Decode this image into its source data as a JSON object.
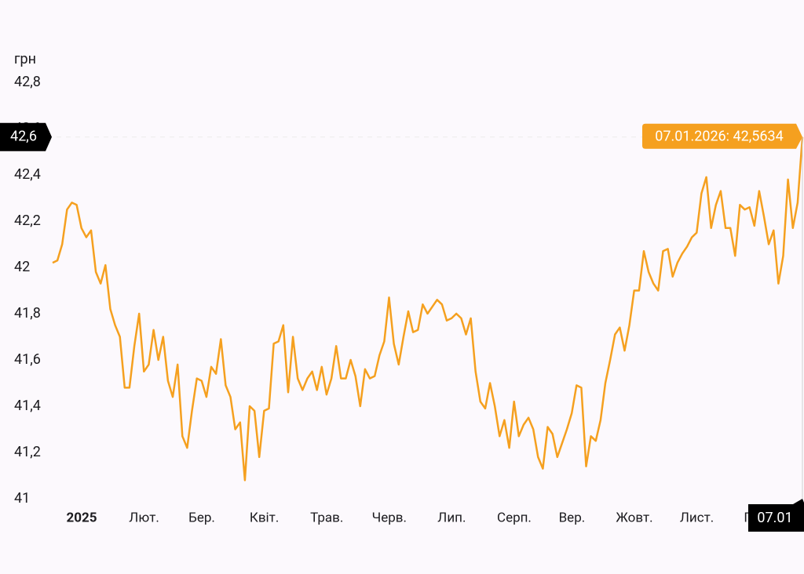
{
  "chart_data": {
    "type": "line",
    "y_label": "грн",
    "categories": [
      "2025",
      null,
      null,
      null,
      null,
      null,
      null,
      null,
      null,
      null,
      null,
      null,
      null,
      "Лют.",
      null,
      null,
      null,
      null,
      null,
      null,
      null,
      null,
      null,
      null,
      null,
      "Бер.",
      null,
      null,
      null,
      null,
      null,
      null,
      null,
      null,
      null,
      null,
      null,
      null,
      "Квіт.",
      null,
      null,
      null,
      null,
      null,
      null,
      null,
      null,
      null,
      null,
      null,
      null,
      "Трав.",
      null,
      null,
      null,
      null,
      null,
      null,
      null,
      null,
      null,
      null,
      null,
      null,
      "Черв.",
      null,
      null,
      null,
      null,
      null,
      null,
      null,
      null,
      null,
      null,
      null,
      null,
      "Лип.",
      null,
      null,
      null,
      null,
      null,
      null,
      null,
      null,
      null,
      null,
      null,
      null,
      "Серп.",
      null,
      null,
      null,
      null,
      null,
      null,
      null,
      null,
      null,
      null,
      null,
      "Вер.",
      null,
      null,
      null,
      null,
      null,
      null,
      null,
      null,
      null,
      null,
      null,
      null,
      "Жовт.",
      null,
      null,
      null,
      null,
      null,
      null,
      null,
      null,
      null,
      null,
      null,
      null,
      "Лист.",
      null,
      null,
      null,
      null,
      null,
      null,
      null,
      null,
      null,
      null,
      null,
      null,
      "Груд.",
      null,
      null,
      null,
      null,
      null,
      null,
      null,
      null,
      null,
      null,
      null,
      null,
      null,
      null,
      null
    ],
    "series": [
      {
        "color": "#f5a01f",
        "values": [
          42.02,
          42.03,
          42.1,
          42.25,
          42.28,
          42.27,
          42.17,
          42.13,
          42.16,
          41.98,
          41.93,
          42.01,
          41.82,
          41.75,
          41.7,
          41.48,
          41.48,
          41.66,
          41.8,
          41.55,
          41.58,
          41.73,
          41.6,
          41.7,
          41.51,
          41.44,
          41.58,
          41.27,
          41.22,
          41.38,
          41.52,
          41.51,
          41.44,
          41.57,
          41.54,
          41.69,
          41.49,
          41.44,
          41.3,
          41.33,
          41.08,
          41.4,
          41.38,
          41.18,
          41.38,
          41.39,
          41.67,
          41.68,
          41.75,
          41.46,
          41.7,
          41.52,
          41.47,
          41.52,
          41.55,
          41.47,
          41.57,
          41.45,
          41.52,
          41.66,
          41.52,
          41.52,
          41.6,
          41.53,
          41.4,
          41.56,
          41.52,
          41.53,
          41.62,
          41.68,
          41.87,
          41.67,
          41.58,
          41.7,
          41.81,
          41.72,
          41.73,
          41.84,
          41.8,
          41.83,
          41.86,
          41.84,
          41.77,
          41.78,
          41.8,
          41.78,
          41.71,
          41.78,
          41.55,
          41.42,
          41.39,
          41.5,
          41.4,
          41.27,
          41.34,
          41.22,
          41.42,
          41.27,
          41.32,
          41.35,
          41.3,
          41.18,
          41.13,
          41.31,
          41.28,
          41.18,
          41.24,
          41.3,
          41.37,
          41.49,
          41.48,
          41.14,
          41.27,
          41.25,
          41.34,
          41.5,
          41.6,
          41.71,
          41.74,
          41.64,
          41.75,
          41.9,
          41.9,
          42.07,
          41.98,
          41.93,
          41.9,
          42.07,
          42.08,
          41.96,
          42.02,
          42.06,
          42.09,
          42.13,
          42.15,
          42.32,
          42.39,
          42.17,
          42.27,
          42.33,
          42.17,
          42.17,
          42.05,
          42.27,
          42.25,
          42.26,
          42.18,
          42.33,
          42.22,
          42.1,
          42.16,
          41.93,
          42.05,
          42.38,
          42.17,
          42.28,
          42.5634
        ]
      }
    ],
    "ylim": [
      41,
      42.8
    ],
    "yticks": [
      41,
      {
        "value": 41.2,
        "label": "41,2"
      },
      {
        "value": 41.4,
        "label": "41,4"
      },
      {
        "value": 41.6,
        "label": "41,6"
      },
      {
        "value": 41.8,
        "label": "41,8"
      },
      42,
      {
        "value": 42.2,
        "label": "42,2"
      },
      {
        "value": 42.4,
        "label": "42,4"
      },
      {
        "value": 42.6,
        "label": "42,6"
      },
      {
        "value": 42.8,
        "label": "42,8"
      }
    ],
    "crosshair": {
      "x_label": "07.01",
      "y_label": "42,6",
      "tooltip": "07.01.2026: 42,5634",
      "tooltip_color": "#f5a01f"
    }
  }
}
